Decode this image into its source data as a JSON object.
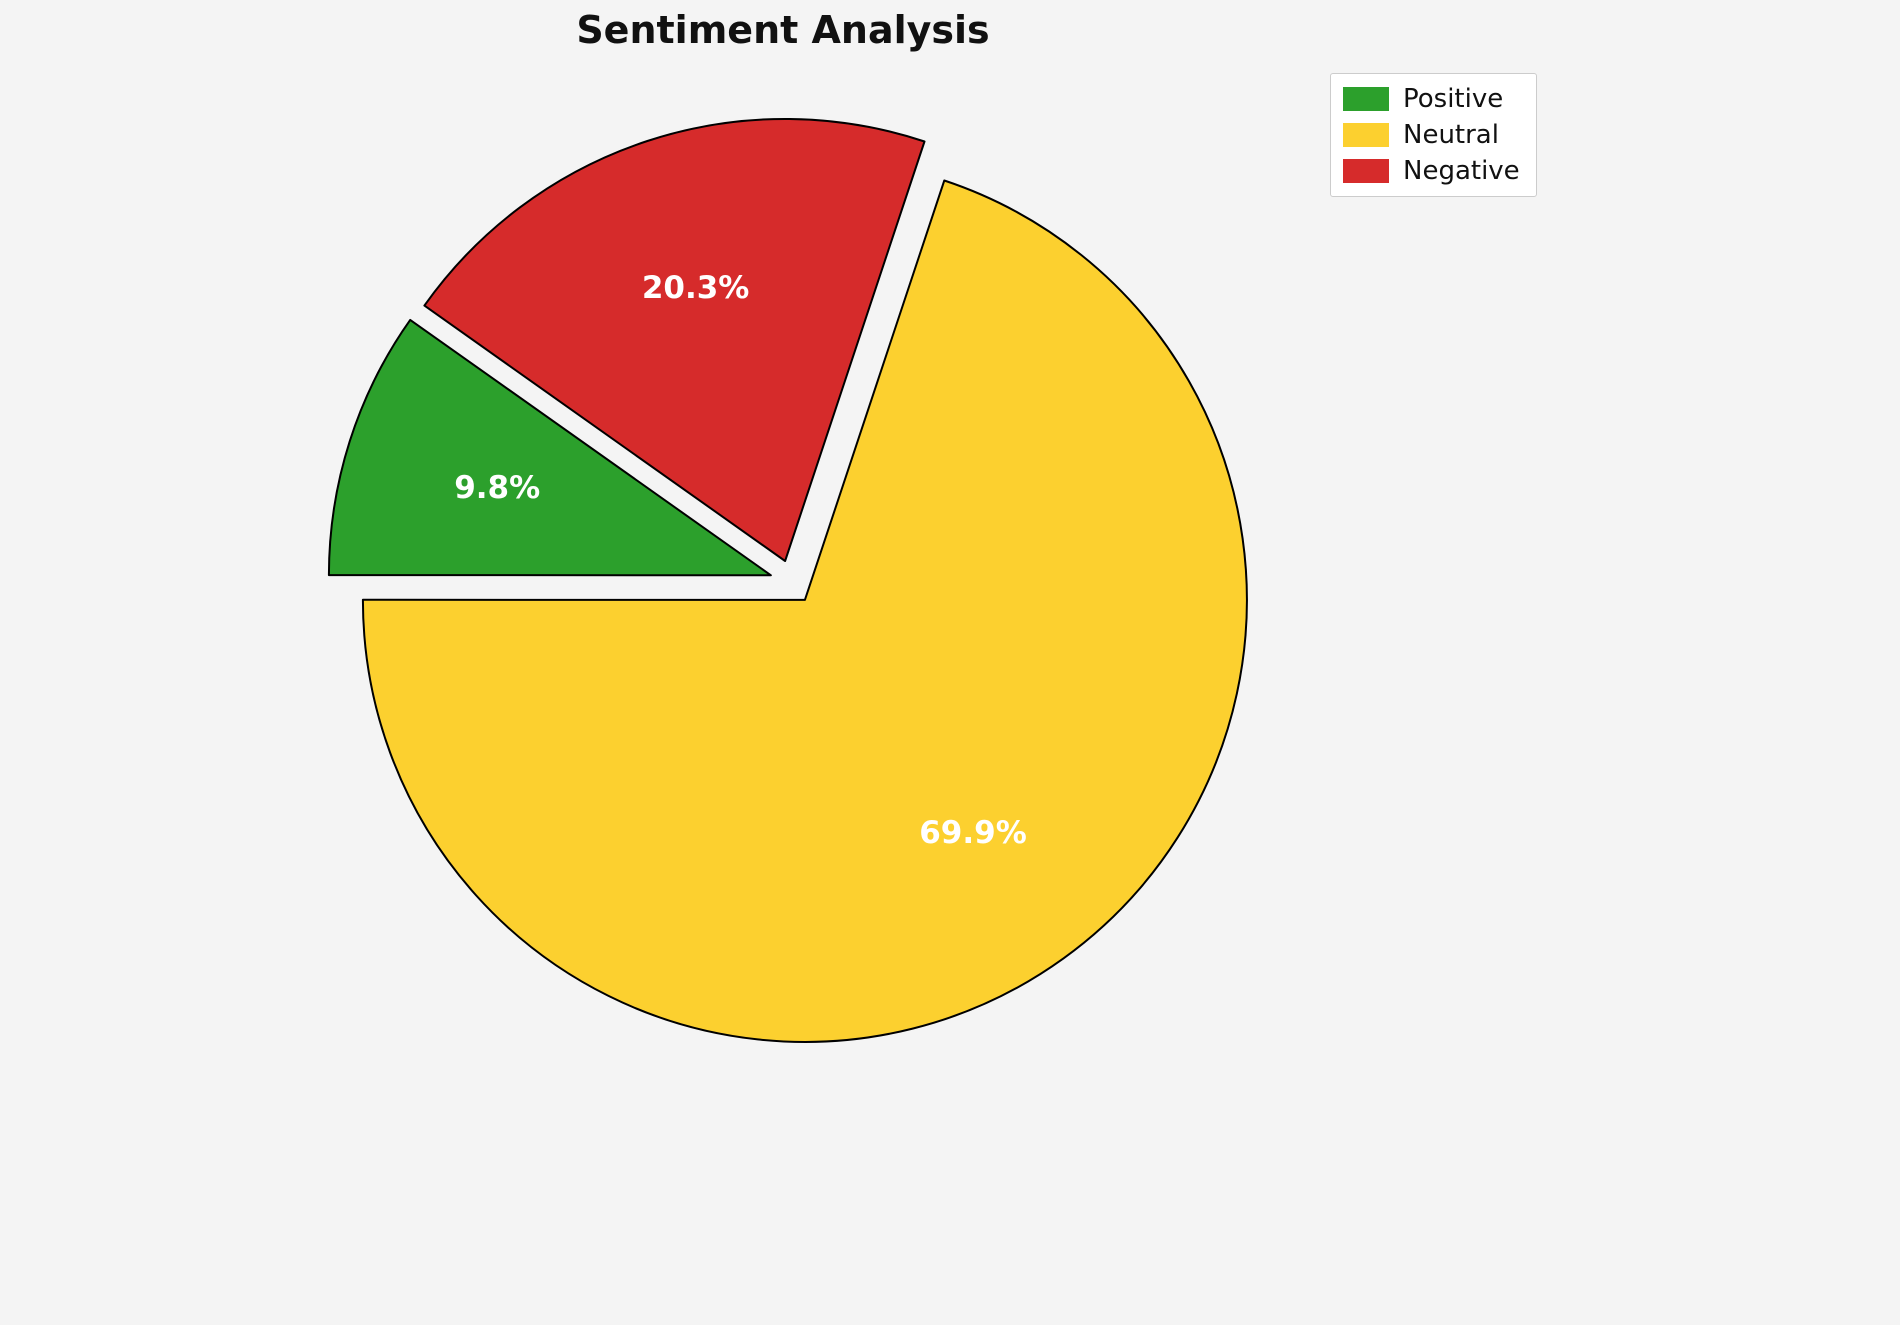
{
  "page": {
    "background_color": "#f4f4f4"
  },
  "chart_data": {
    "type": "pie",
    "title": "Sentiment Analysis",
    "labels": [
      "Positive",
      "Neutral",
      "Negative"
    ],
    "values": [
      9.8,
      69.9,
      20.3
    ],
    "percent_labels": [
      "9.8%",
      "69.9%",
      "20.3%"
    ],
    "colors": [
      "#2ca02c",
      "#fcd02f",
      "#d62b2b"
    ],
    "edge_color": "#000000",
    "label_text_color": "#ffffff",
    "start_angle": 144.7,
    "direction": "counterclockwise",
    "explode": [
      0.05,
      0.05,
      0.05
    ],
    "legend": {
      "position": "upper right",
      "entries": [
        "Positive",
        "Neutral",
        "Negative"
      ]
    }
  }
}
